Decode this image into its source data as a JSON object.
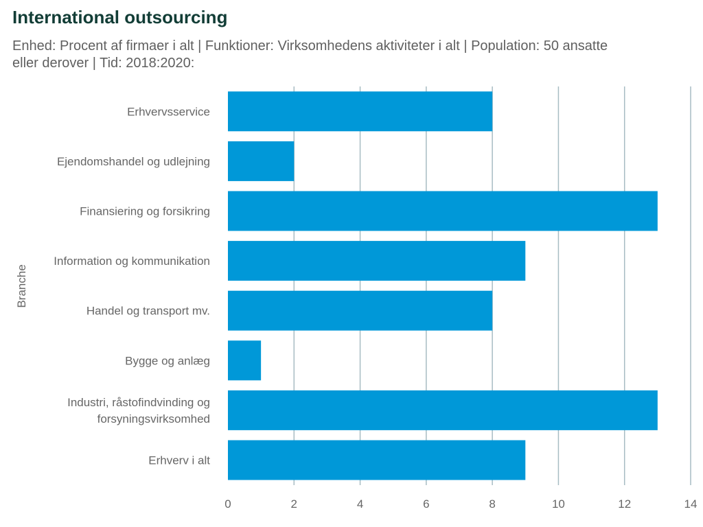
{
  "title": "International outsourcing",
  "subtitle": "Enhed: Procent af firmaer i alt | Funktioner: Virksomhedens aktiviteter i alt | Population: 50 ansatte eller derover | Tid: 2018:2020:",
  "colors": {
    "bar": "#0098d8",
    "grid": "#a7bcc3",
    "title": "#123d36",
    "text": "#666666"
  },
  "chart_data": {
    "type": "bar",
    "orientation": "horizontal",
    "title": "International outsourcing",
    "subtitle": "Enhed: Procent af firmaer i alt | Funktioner: Virksomhedens aktiviteter i alt | Population: 50 ansatte eller derover | Tid: 2018:2020:",
    "xlabel": "",
    "ylabel": "Branche",
    "categories": [
      [
        "Erhvervsservice"
      ],
      [
        "Ejendomshandel og udlejning"
      ],
      [
        "Finansiering og forsikring"
      ],
      [
        "Information og kommunikation"
      ],
      [
        "Handel og transport mv."
      ],
      [
        "Bygge og anlæg"
      ],
      [
        "Industri, råstofindvinding og",
        "forsyningsvirksomhed"
      ],
      [
        "Erhverv i alt"
      ]
    ],
    "values": [
      8,
      2,
      13,
      9,
      8,
      1,
      13,
      9
    ],
    "xlim": [
      0,
      14
    ],
    "xticks": [
      0,
      2,
      4,
      6,
      8,
      10,
      12,
      14
    ],
    "grid": "vertical",
    "legend": "none"
  }
}
